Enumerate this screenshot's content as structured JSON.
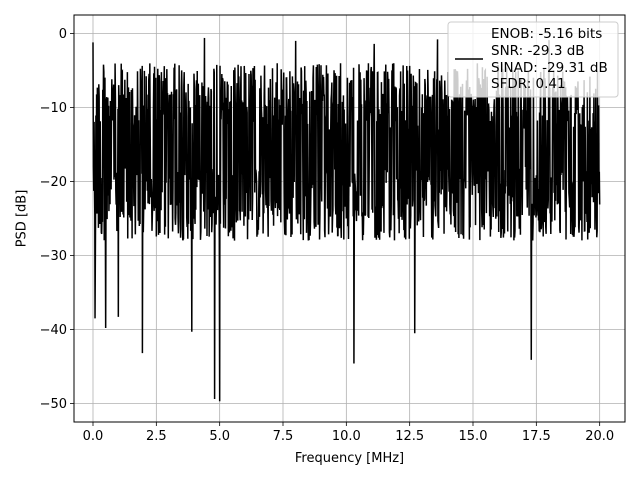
{
  "chart_data": {
    "type": "line",
    "title": "",
    "xlabel": "Frequency [MHz]",
    "ylabel": "PSD [dB]",
    "xlim": [
      -0.75,
      21.0
    ],
    "ylim": [
      -52.5,
      2.5
    ],
    "xticks": [
      0.0,
      2.5,
      5.0,
      7.5,
      10.0,
      12.5,
      15.0,
      17.5,
      20.0
    ],
    "xtick_labels": [
      "0.0",
      "2.5",
      "5.0",
      "7.5",
      "10.0",
      "12.5",
      "15.0",
      "17.5",
      "20.0"
    ],
    "yticks": [
      0,
      -10,
      -20,
      -30,
      -40,
      -50
    ],
    "ytick_labels": [
      "0",
      "−10",
      "−20",
      "−30",
      "−40",
      "−50"
    ],
    "grid": true,
    "legend_position": "upper right",
    "series": [
      {
        "name": "ENOB: -5.16 bits\nSNR: -29.3 dB\nSINAD: -29.31 dB\nSFDR: 0.41",
        "legend_lines": [
          "ENOB: -5.16 bits",
          "SNR: -29.3 dB",
          "SINAD: -29.31 dB",
          "SFDR: 0.41"
        ],
        "color": "#000000",
        "x_range": [
          0.0,
          20.0
        ],
        "noise_band_typical": [
          -28,
          -4
        ],
        "notable_points": [
          {
            "x": 0.0,
            "y": -1.2
          },
          {
            "x": 0.08,
            "y": -38.5
          },
          {
            "x": 0.5,
            "y": -39.8
          },
          {
            "x": 1.0,
            "y": -38.3
          },
          {
            "x": 1.95,
            "y": -43.2
          },
          {
            "x": 3.9,
            "y": -40.3
          },
          {
            "x": 4.4,
            "y": -0.6
          },
          {
            "x": 4.8,
            "y": -49.4
          },
          {
            "x": 5.0,
            "y": -49.7
          },
          {
            "x": 8.0,
            "y": -1.0
          },
          {
            "x": 10.3,
            "y": -44.6
          },
          {
            "x": 11.1,
            "y": -1.4
          },
          {
            "x": 12.7,
            "y": -40.5
          },
          {
            "x": 13.6,
            "y": -0.8
          },
          {
            "x": 17.3,
            "y": -44.1
          },
          {
            "x": 18.0,
            "y": -0.9
          }
        ]
      }
    ]
  }
}
